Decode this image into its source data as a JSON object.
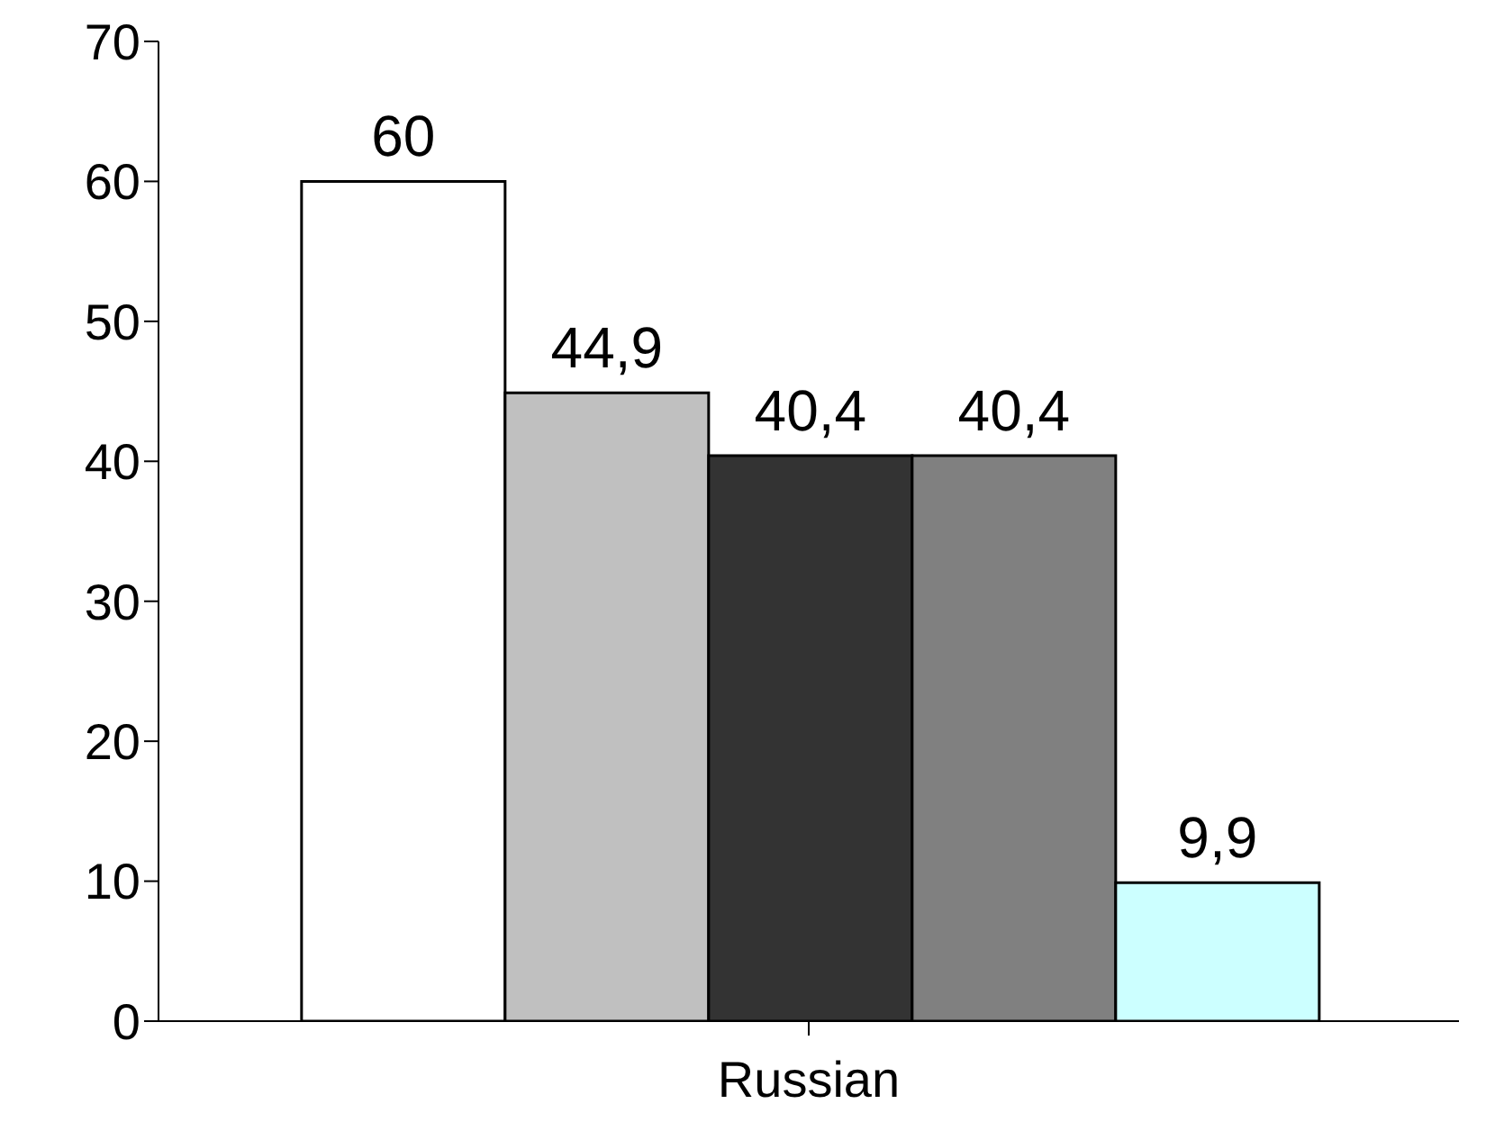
{
  "chart_data": {
    "type": "bar",
    "categories": [
      "Russian"
    ],
    "series": [
      {
        "color": "#ffffff",
        "values": [
          60
        ],
        "value_labels": [
          "60"
        ]
      },
      {
        "color": "#c0c0c0",
        "values": [
          44.9
        ],
        "value_labels": [
          "44,9"
        ]
      },
      {
        "color": "#333333",
        "values": [
          40.4
        ],
        "value_labels": [
          "40,4"
        ]
      },
      {
        "color": "#808080",
        "values": [
          40.4
        ],
        "value_labels": [
          "40,4"
        ]
      },
      {
        "color": "#ccffff",
        "values": [
          9.9
        ],
        "value_labels": [
          "9,9"
        ]
      }
    ],
    "ylim": [
      0,
      70
    ],
    "yticks": [
      0,
      10,
      20,
      30,
      40,
      50,
      60,
      70
    ]
  }
}
